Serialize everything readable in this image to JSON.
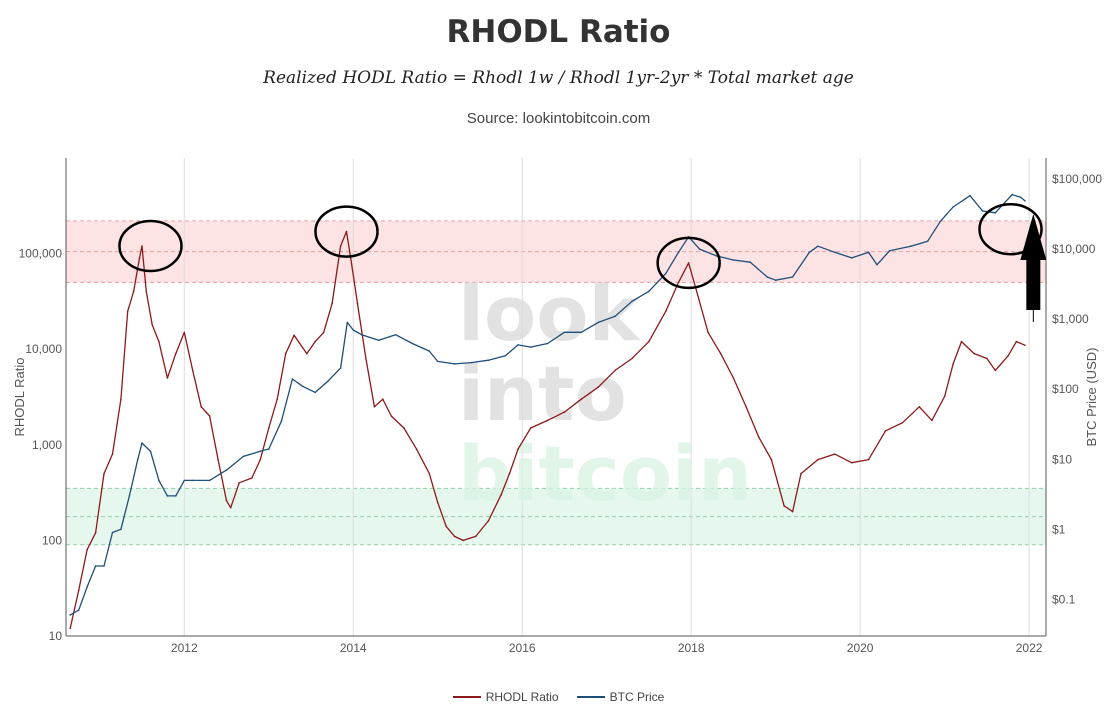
{
  "title": "RHODL Ratio",
  "subtitle": "Realized HODL Ratio = Rhodl 1w / Rhodl 1yr-2yr * Total market age",
  "source": "Source: lookintobitcoin.com",
  "watermark": [
    "look",
    "into",
    "bitcoin"
  ],
  "colors": {
    "rhodl": "#8b1a1a",
    "rhodl_faded": "#b07a74",
    "btc": "#1f4e79",
    "btc_faded": "#8aa2bb",
    "red_band": "#fde3e3",
    "green_band": "#e6f7ee",
    "band_line_red": "#e8a0a0",
    "band_line_green": "#8fcfa8",
    "grid": "#dddddd"
  },
  "legend": [
    {
      "label": "RHODL Ratio",
      "color": "#8b1a1a"
    },
    {
      "label": "BTC Price",
      "color": "#1f4e79"
    }
  ],
  "chart_data": {
    "type": "line",
    "title": "RHODL Ratio",
    "subtitle": "Realized HODL Ratio = Rhodl 1w / Rhodl 1yr-2yr * Total market age",
    "ylabel": "RHODL Ratio",
    "y2label": "BTC Price (USD)",
    "x_ticks": [
      "2012",
      "2014",
      "2016",
      "2018",
      "2020",
      "2022"
    ],
    "y_ticks": [
      "10",
      "100",
      "1,000",
      "10,000",
      "100,000"
    ],
    "y2_ticks": [
      "$0.1",
      "$1",
      "$10",
      "$100",
      "$1,000",
      "$10,000",
      "$100,000"
    ],
    "xlim": [
      2010.6,
      2022.2
    ],
    "ylim": [
      10,
      1000000
    ],
    "y2lim": [
      0.03,
      200000
    ],
    "yscale": "log",
    "y2scale": "log",
    "bands": {
      "red": {
        "low": 50000,
        "high": 220000
      },
      "green": {
        "low": 90,
        "high": 350
      }
    },
    "series": [
      {
        "name": "RHODL Ratio",
        "axis": "left",
        "x": [
          2010.65,
          2010.75,
          2010.85,
          2010.95,
          2011.05,
          2011.15,
          2011.25,
          2011.33,
          2011.4,
          2011.47,
          2011.5,
          2011.55,
          2011.62,
          2011.7,
          2011.8,
          2011.9,
          2012.0,
          2012.1,
          2012.2,
          2012.3,
          2012.4,
          2012.5,
          2012.55,
          2012.65,
          2012.8,
          2012.9,
          2013.0,
          2013.1,
          2013.2,
          2013.3,
          2013.45,
          2013.55,
          2013.65,
          2013.75,
          2013.85,
          2013.92,
          2013.97,
          2014.05,
          2014.15,
          2014.25,
          2014.35,
          2014.45,
          2014.6,
          2014.75,
          2014.9,
          2015.0,
          2015.1,
          2015.2,
          2015.3,
          2015.45,
          2015.6,
          2015.75,
          2015.85,
          2015.95,
          2016.1,
          2016.3,
          2016.5,
          2016.7,
          2016.9,
          2017.1,
          2017.3,
          2017.5,
          2017.7,
          2017.85,
          2017.97,
          2018.05,
          2018.2,
          2018.35,
          2018.5,
          2018.65,
          2018.8,
          2018.95,
          2019.1,
          2019.2,
          2019.3,
          2019.5,
          2019.7,
          2019.9,
          2020.1,
          2020.3,
          2020.5,
          2020.7,
          2020.85,
          2021.0,
          2021.1,
          2021.2,
          2021.35,
          2021.5,
          2021.6,
          2021.75,
          2021.85,
          2021.95
        ],
        "y": [
          12,
          30,
          80,
          120,
          500,
          800,
          3000,
          25000,
          40000,
          90000,
          120000,
          40000,
          18000,
          12000,
          5000,
          9000,
          15000,
          6000,
          2500,
          2000,
          700,
          260,
          220,
          400,
          450,
          700,
          1500,
          3000,
          9000,
          14000,
          9000,
          12000,
          15000,
          30000,
          120000,
          170000,
          90000,
          30000,
          8000,
          2500,
          3000,
          2000,
          1500,
          900,
          500,
          250,
          140,
          110,
          100,
          110,
          160,
          300,
          500,
          900,
          1500,
          1800,
          2200,
          3000,
          4000,
          6000,
          8000,
          12000,
          25000,
          50000,
          80000,
          45000,
          15000,
          9000,
          5000,
          2500,
          1200,
          700,
          230,
          200,
          500,
          700,
          800,
          650,
          700,
          1400,
          1700,
          2500,
          1800,
          3200,
          7000,
          12000,
          9000,
          8000,
          6000,
          8500,
          12000,
          11000
        ]
      },
      {
        "name": "BTC Price",
        "axis": "right",
        "x": [
          2010.65,
          2010.75,
          2010.85,
          2010.95,
          2011.05,
          2011.15,
          2011.25,
          2011.35,
          2011.45,
          2011.5,
          2011.6,
          2011.7,
          2011.8,
          2011.9,
          2012.0,
          2012.1,
          2012.3,
          2012.5,
          2012.7,
          2012.9,
          2013.0,
          2013.15,
          2013.28,
          2013.4,
          2013.55,
          2013.7,
          2013.85,
          2013.93,
          2014.0,
          2014.1,
          2014.3,
          2014.5,
          2014.7,
          2014.9,
          2015.0,
          2015.2,
          2015.4,
          2015.6,
          2015.8,
          2015.95,
          2016.1,
          2016.3,
          2016.5,
          2016.7,
          2016.9,
          2017.1,
          2017.3,
          2017.5,
          2017.7,
          2017.85,
          2017.97,
          2018.1,
          2018.3,
          2018.5,
          2018.7,
          2018.9,
          2019.0,
          2019.2,
          2019.4,
          2019.5,
          2019.7,
          2019.9,
          2020.1,
          2020.2,
          2020.35,
          2020.6,
          2020.8,
          2020.95,
          2021.1,
          2021.3,
          2021.45,
          2021.6,
          2021.8,
          2021.9,
          2021.95
        ],
        "y": [
          0.06,
          0.07,
          0.15,
          0.3,
          0.3,
          0.9,
          1,
          3,
          10,
          17,
          13,
          5,
          3,
          3,
          5,
          5,
          5,
          7,
          11,
          13,
          14,
          35,
          140,
          110,
          90,
          130,
          200,
          900,
          700,
          600,
          500,
          600,
          450,
          350,
          250,
          230,
          240,
          260,
          300,
          430,
          400,
          450,
          650,
          650,
          900,
          1100,
          1800,
          2500,
          4500,
          9000,
          15000,
          10000,
          8000,
          7000,
          6500,
          4000,
          3600,
          4000,
          9000,
          11000,
          9000,
          7500,
          9000,
          6000,
          9500,
          11000,
          13000,
          25000,
          40000,
          58000,
          35000,
          33000,
          60000,
          55000,
          49000
        ]
      }
    ]
  },
  "annotations": {
    "circles": [
      {
        "x": 2011.6,
        "y": 120000
      },
      {
        "x": 2013.92,
        "y": 170000
      },
      {
        "x": 2017.97,
        "y": 80000
      },
      {
        "x": 2021.78,
        "y": 180000
      }
    ],
    "arrow": {
      "x": 2022.05
    }
  }
}
